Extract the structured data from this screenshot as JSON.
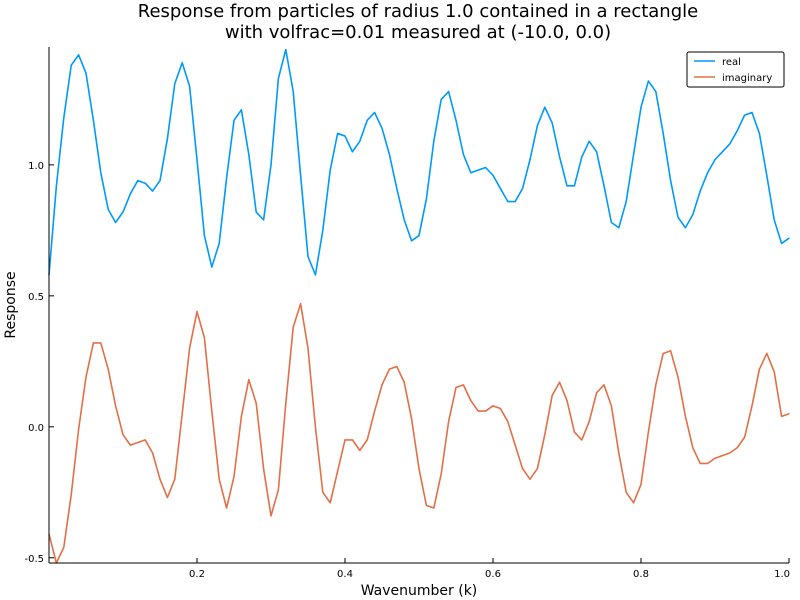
{
  "chart_data": {
    "type": "line",
    "title_lines": [
      "Response from particles of radius 1.0 contained in a rectangle",
      "with volfrac=0.01 measured at (-10.0, 0.0)"
    ],
    "xlabel": "Wavenumber (k)",
    "ylabel": "Response",
    "xlim": [
      0.0,
      1.0
    ],
    "ylim": [
      -0.52,
      1.45
    ],
    "xticks": [
      0.2,
      0.4,
      0.6,
      0.8,
      1.0
    ],
    "xtick_labels": [
      "0.2",
      "0.4",
      "0.6",
      "0.8",
      "1.0"
    ],
    "yticks": [
      -0.5,
      0.0,
      0.5,
      1.0
    ],
    "ytick_labels": [
      "-0.5",
      "0.0",
      "0.5",
      "1.0"
    ],
    "grid": false,
    "legend_position": "top-right",
    "colors": {
      "real": "#009AFA",
      "imaginary": "#E36F47",
      "axis": "#000000"
    },
    "series": [
      {
        "name": "real",
        "key": "real",
        "x": [
          0.0,
          0.01,
          0.02,
          0.03,
          0.04,
          0.05,
          0.06,
          0.07,
          0.08,
          0.09,
          0.1,
          0.11,
          0.12,
          0.13,
          0.14,
          0.15,
          0.16,
          0.17,
          0.18,
          0.19,
          0.2,
          0.21,
          0.22,
          0.23,
          0.24,
          0.25,
          0.26,
          0.27,
          0.28,
          0.29,
          0.3,
          0.31,
          0.32,
          0.33,
          0.34,
          0.35,
          0.36,
          0.37,
          0.38,
          0.39,
          0.4,
          0.41,
          0.42,
          0.43,
          0.44,
          0.45,
          0.46,
          0.47,
          0.48,
          0.49,
          0.5,
          0.51,
          0.52,
          0.53,
          0.54,
          0.55,
          0.56,
          0.57,
          0.58,
          0.59,
          0.6,
          0.61,
          0.62,
          0.63,
          0.64,
          0.65,
          0.66,
          0.67,
          0.68,
          0.69,
          0.7,
          0.71,
          0.72,
          0.73,
          0.74,
          0.75,
          0.76,
          0.77,
          0.78,
          0.79,
          0.8,
          0.81,
          0.82,
          0.83,
          0.84,
          0.85,
          0.86,
          0.87,
          0.88,
          0.89,
          0.9,
          0.91,
          0.92,
          0.93,
          0.94,
          0.95,
          0.96,
          0.97,
          0.98,
          0.99,
          1.0
        ],
        "y": [
          0.58,
          0.92,
          1.18,
          1.38,
          1.42,
          1.35,
          1.17,
          0.97,
          0.83,
          0.78,
          0.82,
          0.89,
          0.94,
          0.93,
          0.9,
          0.94,
          1.1,
          1.31,
          1.39,
          1.3,
          1.02,
          0.73,
          0.61,
          0.7,
          0.95,
          1.17,
          1.21,
          1.04,
          0.82,
          0.79,
          1.0,
          1.33,
          1.44,
          1.28,
          0.96,
          0.65,
          0.58,
          0.75,
          0.98,
          1.12,
          1.11,
          1.05,
          1.09,
          1.17,
          1.2,
          1.14,
          1.04,
          0.91,
          0.79,
          0.71,
          0.73,
          0.87,
          1.09,
          1.25,
          1.28,
          1.17,
          1.04,
          0.97,
          0.98,
          0.99,
          0.96,
          0.91,
          0.86,
          0.86,
          0.91,
          1.02,
          1.15,
          1.22,
          1.16,
          1.03,
          0.92,
          0.92,
          1.03,
          1.09,
          1.05,
          0.92,
          0.78,
          0.76,
          0.86,
          1.04,
          1.22,
          1.32,
          1.28,
          1.12,
          0.94,
          0.8,
          0.76,
          0.81,
          0.9,
          0.97,
          1.02,
          1.05,
          1.08,
          1.13,
          1.19,
          1.2,
          1.12,
          0.96,
          0.79,
          0.7,
          0.72
        ]
      },
      {
        "name": "imaginary",
        "key": "imaginary",
        "x": [
          0.0,
          0.01,
          0.02,
          0.03,
          0.04,
          0.05,
          0.06,
          0.07,
          0.08,
          0.09,
          0.1,
          0.11,
          0.12,
          0.13,
          0.14,
          0.15,
          0.16,
          0.17,
          0.18,
          0.19,
          0.2,
          0.21,
          0.22,
          0.23,
          0.24,
          0.25,
          0.26,
          0.27,
          0.28,
          0.29,
          0.3,
          0.31,
          0.32,
          0.33,
          0.34,
          0.35,
          0.36,
          0.37,
          0.38,
          0.39,
          0.4,
          0.41,
          0.42,
          0.43,
          0.44,
          0.45,
          0.46,
          0.47,
          0.48,
          0.49,
          0.5,
          0.51,
          0.52,
          0.53,
          0.54,
          0.55,
          0.56,
          0.57,
          0.58,
          0.59,
          0.6,
          0.61,
          0.62,
          0.63,
          0.64,
          0.65,
          0.66,
          0.67,
          0.68,
          0.69,
          0.7,
          0.71,
          0.72,
          0.73,
          0.74,
          0.75,
          0.76,
          0.77,
          0.78,
          0.79,
          0.8,
          0.81,
          0.82,
          0.83,
          0.84,
          0.85,
          0.86,
          0.87,
          0.88,
          0.89,
          0.9,
          0.91,
          0.92,
          0.93,
          0.94,
          0.95,
          0.96,
          0.97,
          0.98,
          0.99,
          1.0
        ],
        "y": [
          -0.41,
          -0.52,
          -0.46,
          -0.26,
          -0.01,
          0.19,
          0.32,
          0.32,
          0.22,
          0.08,
          -0.03,
          -0.07,
          -0.06,
          -0.05,
          -0.1,
          -0.2,
          -0.27,
          -0.2,
          0.05,
          0.3,
          0.44,
          0.34,
          0.06,
          -0.2,
          -0.31,
          -0.19,
          0.04,
          0.18,
          0.09,
          -0.16,
          -0.34,
          -0.24,
          0.09,
          0.38,
          0.47,
          0.3,
          0.0,
          -0.25,
          -0.29,
          -0.17,
          -0.05,
          -0.05,
          -0.09,
          -0.05,
          0.06,
          0.16,
          0.22,
          0.23,
          0.17,
          0.03,
          -0.16,
          -0.3,
          -0.31,
          -0.18,
          0.02,
          0.15,
          0.16,
          0.1,
          0.06,
          0.06,
          0.08,
          0.07,
          0.02,
          -0.07,
          -0.16,
          -0.2,
          -0.16,
          -0.03,
          0.12,
          0.17,
          0.1,
          -0.02,
          -0.05,
          0.02,
          0.13,
          0.16,
          0.08,
          -0.1,
          -0.25,
          -0.29,
          -0.22,
          -0.02,
          0.16,
          0.28,
          0.29,
          0.19,
          0.04,
          -0.08,
          -0.14,
          -0.14,
          -0.12,
          -0.11,
          -0.1,
          -0.08,
          -0.04,
          0.08,
          0.22,
          0.28,
          0.21,
          0.04,
          0.05
        ]
      }
    ]
  }
}
